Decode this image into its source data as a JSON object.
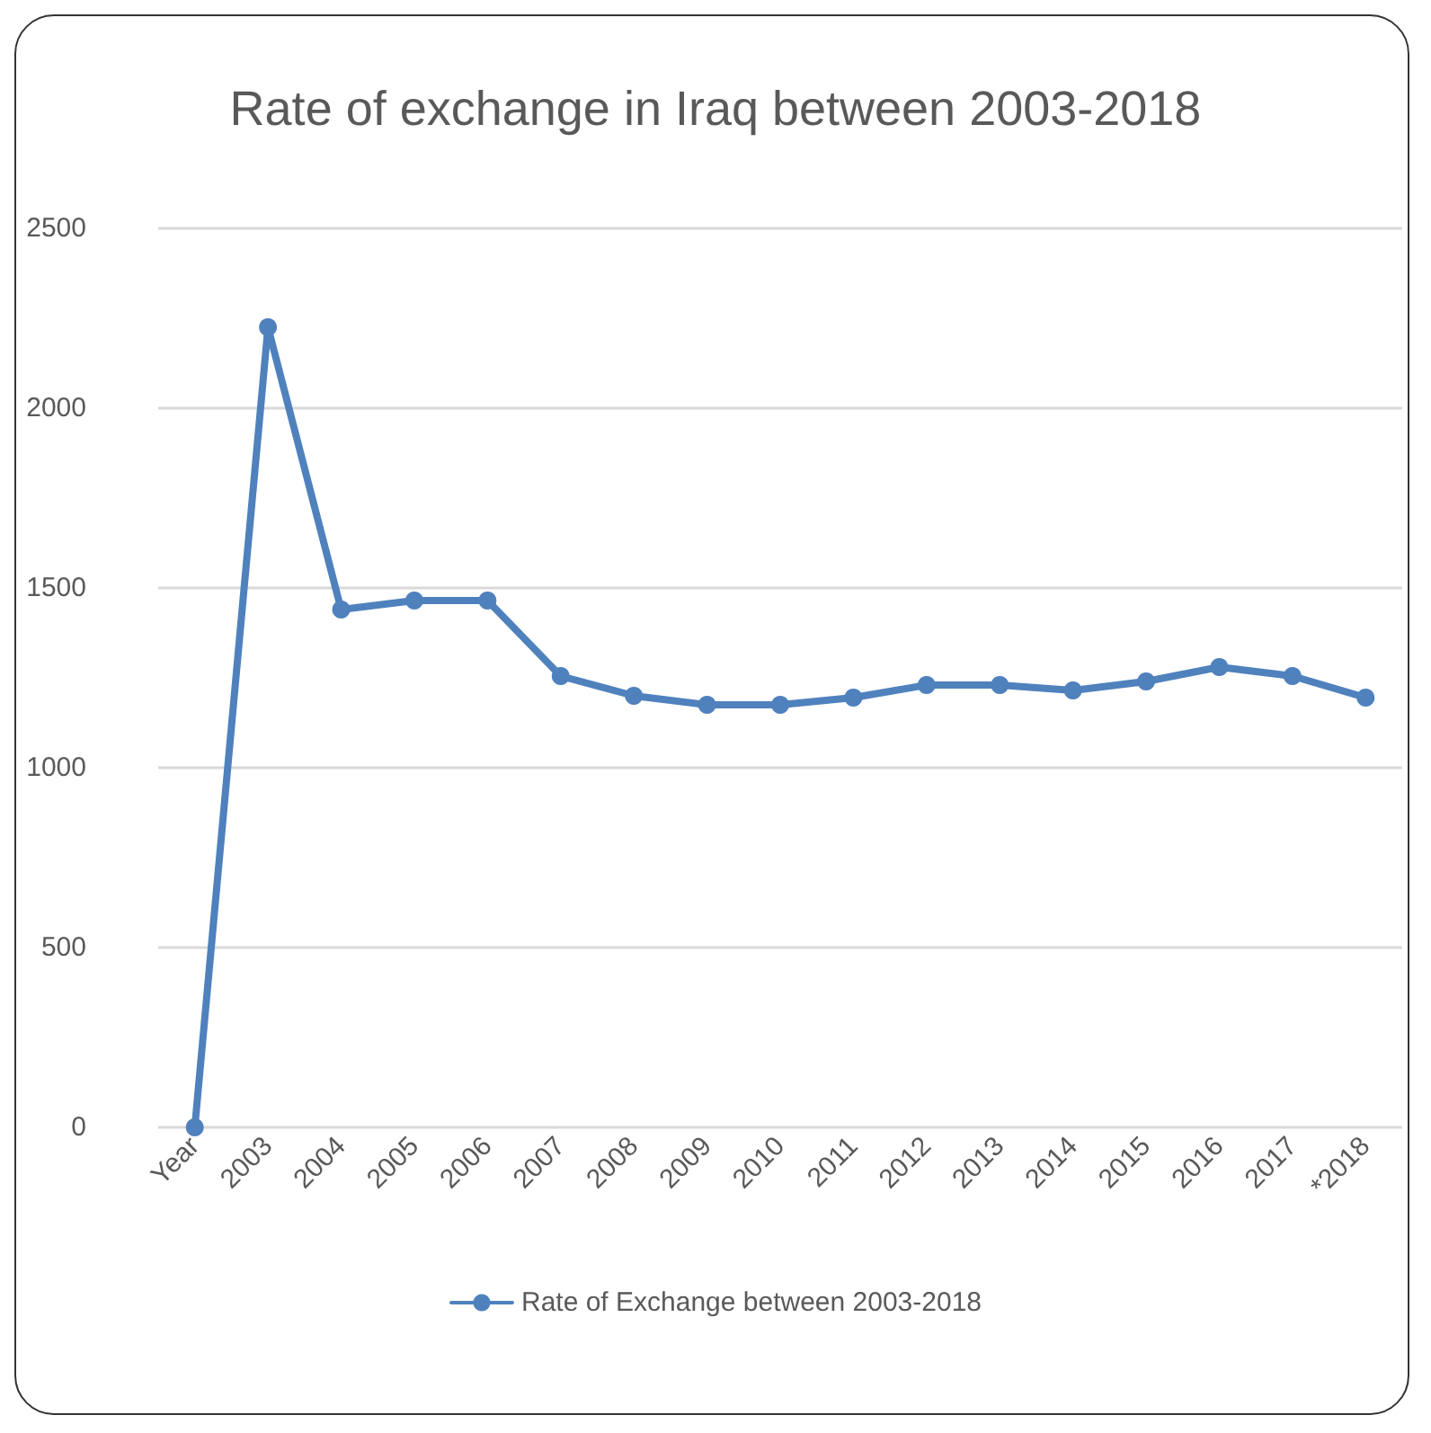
{
  "chart_data": {
    "type": "line",
    "title": "Rate of exchange in Iraq between 2003-2018",
    "categories": [
      "Year",
      "2003",
      "2004",
      "2005",
      "2006",
      "2007",
      "2008",
      "2009",
      "2010",
      "2011",
      "2012",
      "2013",
      "2014",
      "2015",
      "2016",
      "2017",
      "*2018"
    ],
    "series": [
      {
        "name": "Rate of Exchange between 2003-2018",
        "color": "#4f81bd",
        "values": [
          0,
          2225,
          1440,
          1465,
          1465,
          1255,
          1200,
          1175,
          1175,
          1195,
          1230,
          1230,
          1215,
          1240,
          1280,
          1255,
          1195
        ]
      }
    ],
    "ylim": [
      0,
      2500
    ],
    "yticks": [
      0,
      500,
      1000,
      1500,
      2000,
      2500
    ],
    "grid": "y",
    "legend": "bottom",
    "marker": "circle",
    "line_style": "solid"
  }
}
